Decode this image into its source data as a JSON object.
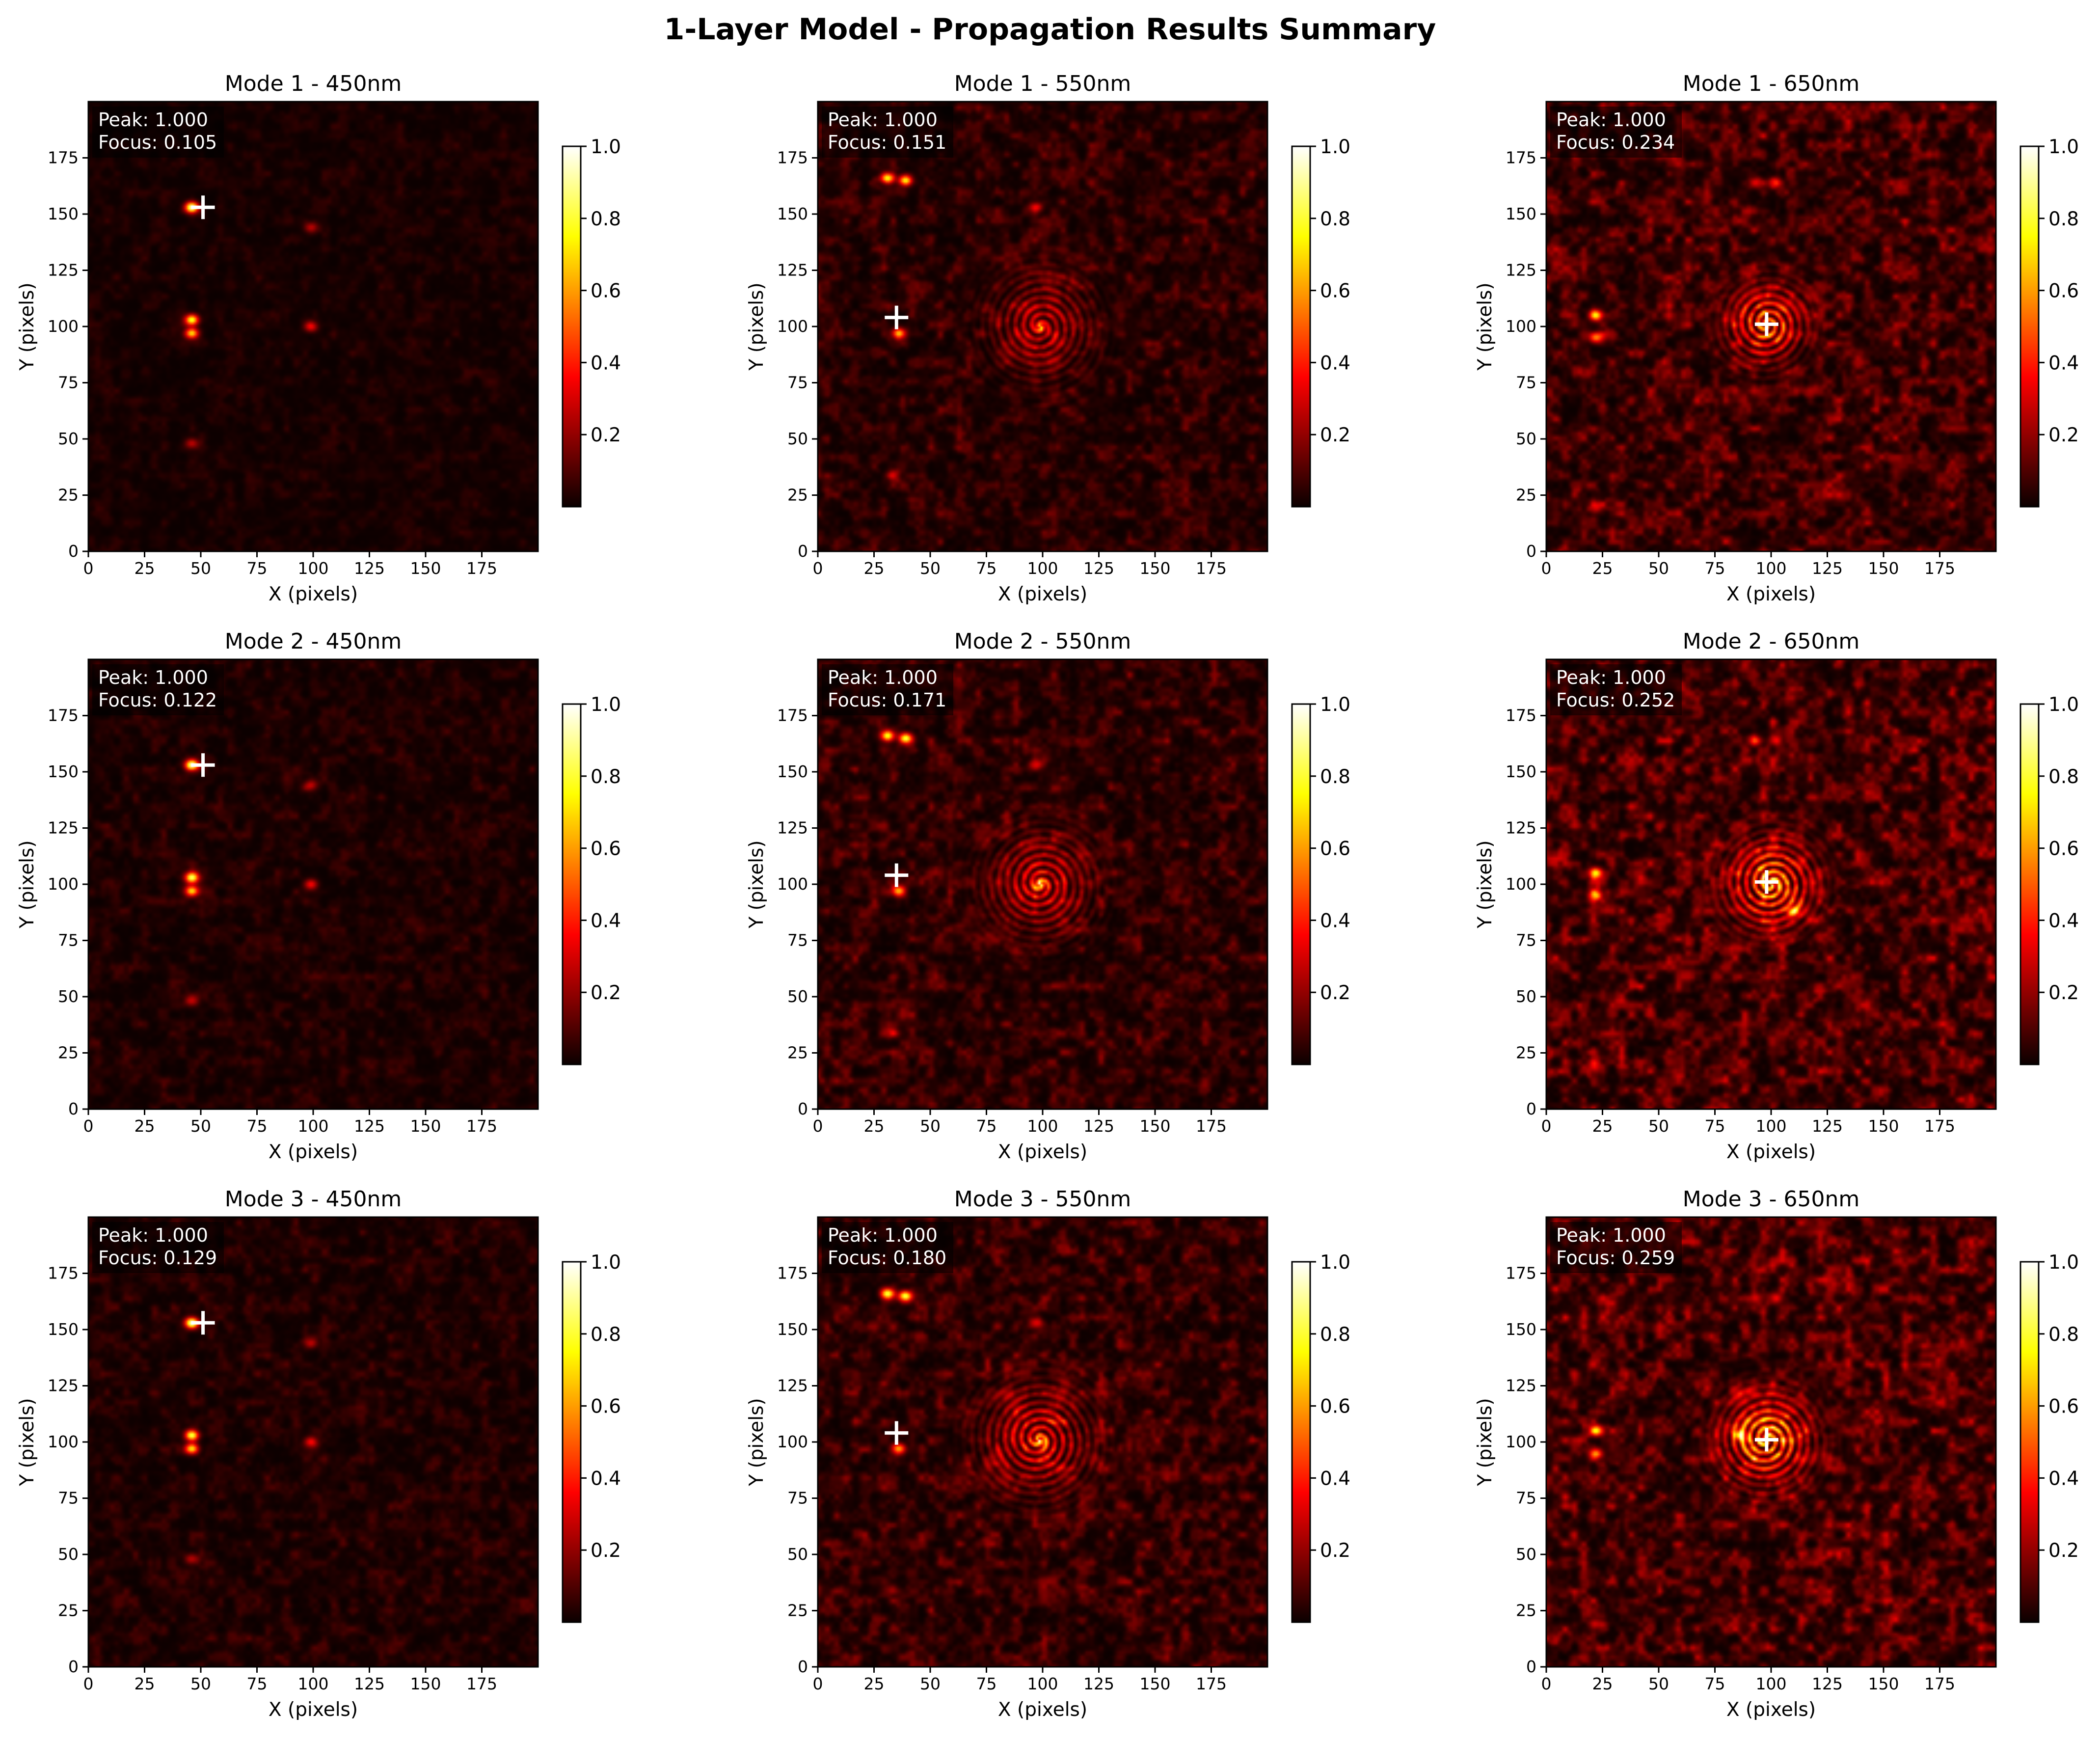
{
  "figure": {
    "title": "1-Layer Model - Propagation Results Summary"
  },
  "colormap": "hot",
  "chart_data": [
    {
      "type": "heatmap",
      "title": "Mode 1 - 450nm",
      "xlabel": "X (pixels)",
      "ylabel": "Y (pixels)",
      "xlim": [
        0,
        200
      ],
      "ylim": [
        0,
        200
      ],
      "xticks": [
        0,
        25,
        50,
        75,
        100,
        125,
        150,
        175
      ],
      "yticks": [
        0,
        25,
        50,
        75,
        100,
        125,
        150,
        175
      ],
      "colorbar": {
        "ticks": [
          0.2,
          0.4,
          0.6,
          0.8,
          1.0
        ],
        "tick_labels": [
          "0.2",
          "0.4",
          "0.6",
          "0.8",
          "1.0"
        ]
      },
      "annotation": {
        "peak_label": "Peak: 1.000",
        "focus_label": "Focus: 0.105"
      },
      "marker": {
        "x": 51,
        "y": 153
      },
      "spots": [
        {
          "x": 46,
          "y": 153,
          "i": 0.95
        },
        {
          "x": 46,
          "y": 103,
          "i": 0.8
        },
        {
          "x": 46,
          "y": 97,
          "i": 0.7
        },
        {
          "x": 99,
          "y": 144,
          "i": 0.25
        },
        {
          "x": 99,
          "y": 100,
          "i": 0.35
        },
        {
          "x": 46,
          "y": 48,
          "i": 0.25
        }
      ],
      "ring": null,
      "noise": 0.05
    },
    {
      "type": "heatmap",
      "title": "Mode 1 - 550nm",
      "xlabel": "X (pixels)",
      "ylabel": "Y (pixels)",
      "xlim": [
        0,
        200
      ],
      "ylim": [
        0,
        200
      ],
      "xticks": [
        0,
        25,
        50,
        75,
        100,
        125,
        150,
        175
      ],
      "yticks": [
        0,
        25,
        50,
        75,
        100,
        125,
        150,
        175
      ],
      "colorbar": {
        "ticks": [
          0.2,
          0.4,
          0.6,
          0.8,
          1.0
        ],
        "tick_labels": [
          "0.2",
          "0.4",
          "0.6",
          "0.8",
          "1.0"
        ]
      },
      "annotation": {
        "peak_label": "Peak: 1.000",
        "focus_label": "Focus: 0.151"
      },
      "marker": {
        "x": 35,
        "y": 104
      },
      "spots": [
        {
          "x": 31,
          "y": 166,
          "i": 0.75
        },
        {
          "x": 39,
          "y": 165,
          "i": 0.75
        },
        {
          "x": 36,
          "y": 97,
          "i": 0.6
        },
        {
          "x": 97,
          "y": 153,
          "i": 0.3
        },
        {
          "x": 99,
          "y": 100,
          "i": 0.45
        },
        {
          "x": 33,
          "y": 34,
          "i": 0.2
        }
      ],
      "ring": {
        "x": 99,
        "y": 100,
        "r": 20,
        "i": 0.3
      },
      "noise": 0.12
    },
    {
      "type": "heatmap",
      "title": "Mode 1 - 650nm",
      "xlabel": "X (pixels)",
      "ylabel": "Y (pixels)",
      "xlim": [
        0,
        200
      ],
      "ylim": [
        0,
        200
      ],
      "xticks": [
        0,
        25,
        50,
        75,
        100,
        125,
        150,
        175
      ],
      "yticks": [
        0,
        25,
        50,
        75,
        100,
        125,
        150,
        175
      ],
      "colorbar": {
        "ticks": [
          0.2,
          0.4,
          0.6,
          0.8,
          1.0
        ],
        "tick_labels": [
          "0.2",
          "0.4",
          "0.6",
          "0.8",
          "1.0"
        ]
      },
      "annotation": {
        "peak_label": "Peak: 1.000",
        "focus_label": "Focus: 0.234"
      },
      "marker": {
        "x": 98,
        "y": 101
      },
      "spots": [
        {
          "x": 22,
          "y": 105,
          "i": 0.7
        },
        {
          "x": 22,
          "y": 95,
          "i": 0.5
        },
        {
          "x": 93,
          "y": 164,
          "i": 0.3
        },
        {
          "x": 102,
          "y": 164,
          "i": 0.3
        },
        {
          "x": 22,
          "y": 19,
          "i": 0.2
        }
      ],
      "ring": {
        "x": 98,
        "y": 101,
        "r": 15,
        "i": 0.6
      },
      "noise": 0.2
    },
    {
      "type": "heatmap",
      "title": "Mode 2 - 450nm",
      "xlabel": "X (pixels)",
      "ylabel": "Y (pixels)",
      "xlim": [
        0,
        200
      ],
      "ylim": [
        0,
        200
      ],
      "xticks": [
        0,
        25,
        50,
        75,
        100,
        125,
        150,
        175
      ],
      "yticks": [
        0,
        25,
        50,
        75,
        100,
        125,
        150,
        175
      ],
      "colorbar": {
        "ticks": [
          0.2,
          0.4,
          0.6,
          0.8,
          1.0
        ],
        "tick_labels": [
          "0.2",
          "0.4",
          "0.6",
          "0.8",
          "1.0"
        ]
      },
      "annotation": {
        "peak_label": "Peak: 1.000",
        "focus_label": "Focus: 0.122"
      },
      "marker": {
        "x": 51,
        "y": 153
      },
      "spots": [
        {
          "x": 46,
          "y": 153,
          "i": 0.95
        },
        {
          "x": 46,
          "y": 103,
          "i": 0.8
        },
        {
          "x": 46,
          "y": 97,
          "i": 0.7
        },
        {
          "x": 99,
          "y": 144,
          "i": 0.25
        },
        {
          "x": 99,
          "y": 100,
          "i": 0.35
        },
        {
          "x": 46,
          "y": 48,
          "i": 0.25
        }
      ],
      "ring": null,
      "noise": 0.07
    },
    {
      "type": "heatmap",
      "title": "Mode 2 - 550nm",
      "xlabel": "X (pixels)",
      "ylabel": "Y (pixels)",
      "xlim": [
        0,
        200
      ],
      "ylim": [
        0,
        200
      ],
      "xticks": [
        0,
        25,
        50,
        75,
        100,
        125,
        150,
        175
      ],
      "yticks": [
        0,
        25,
        50,
        75,
        100,
        125,
        150,
        175
      ],
      "colorbar": {
        "ticks": [
          0.2,
          0.4,
          0.6,
          0.8,
          1.0
        ],
        "tick_labels": [
          "0.2",
          "0.4",
          "0.6",
          "0.8",
          "1.0"
        ]
      },
      "annotation": {
        "peak_label": "Peak: 1.000",
        "focus_label": "Focus: 0.171"
      },
      "marker": {
        "x": 35,
        "y": 104
      },
      "spots": [
        {
          "x": 31,
          "y": 166,
          "i": 0.75
        },
        {
          "x": 39,
          "y": 165,
          "i": 0.75
        },
        {
          "x": 36,
          "y": 97,
          "i": 0.6
        },
        {
          "x": 97,
          "y": 153,
          "i": 0.3
        },
        {
          "x": 99,
          "y": 100,
          "i": 0.45
        },
        {
          "x": 33,
          "y": 34,
          "i": 0.2
        }
      ],
      "ring": {
        "x": 99,
        "y": 100,
        "r": 20,
        "i": 0.35
      },
      "noise": 0.14
    },
    {
      "type": "heatmap",
      "title": "Mode 2 - 650nm",
      "xlabel": "X (pixels)",
      "ylabel": "Y (pixels)",
      "xlim": [
        0,
        200
      ],
      "ylim": [
        0,
        200
      ],
      "xticks": [
        0,
        25,
        50,
        75,
        100,
        125,
        150,
        175
      ],
      "yticks": [
        0,
        25,
        50,
        75,
        100,
        125,
        150,
        175
      ],
      "colorbar": {
        "ticks": [
          0.2,
          0.4,
          0.6,
          0.8,
          1.0
        ],
        "tick_labels": [
          "0.2",
          "0.4",
          "0.6",
          "0.8",
          "1.0"
        ]
      },
      "annotation": {
        "peak_label": "Peak: 1.000",
        "focus_label": "Focus: 0.252"
      },
      "marker": {
        "x": 98,
        "y": 101
      },
      "spots": [
        {
          "x": 22,
          "y": 105,
          "i": 0.7
        },
        {
          "x": 22,
          "y": 95,
          "i": 0.5
        },
        {
          "x": 93,
          "y": 164,
          "i": 0.3
        },
        {
          "x": 102,
          "y": 164,
          "i": 0.3
        },
        {
          "x": 110,
          "y": 88,
          "i": 0.6
        },
        {
          "x": 22,
          "y": 19,
          "i": 0.2
        }
      ],
      "ring": {
        "x": 100,
        "y": 100,
        "r": 17,
        "i": 0.65
      },
      "noise": 0.22
    },
    {
      "type": "heatmap",
      "title": "Mode 3 - 450nm",
      "xlabel": "X (pixels)",
      "ylabel": "Y (pixels)",
      "xlim": [
        0,
        200
      ],
      "ylim": [
        0,
        200
      ],
      "xticks": [
        0,
        25,
        50,
        75,
        100,
        125,
        150,
        175
      ],
      "yticks": [
        0,
        25,
        50,
        75,
        100,
        125,
        150,
        175
      ],
      "colorbar": {
        "ticks": [
          0.2,
          0.4,
          0.6,
          0.8,
          1.0
        ],
        "tick_labels": [
          "0.2",
          "0.4",
          "0.6",
          "0.8",
          "1.0"
        ]
      },
      "annotation": {
        "peak_label": "Peak: 1.000",
        "focus_label": "Focus: 0.129"
      },
      "marker": {
        "x": 51,
        "y": 153
      },
      "spots": [
        {
          "x": 46,
          "y": 153,
          "i": 0.95
        },
        {
          "x": 46,
          "y": 103,
          "i": 0.8
        },
        {
          "x": 46,
          "y": 97,
          "i": 0.7
        },
        {
          "x": 99,
          "y": 144,
          "i": 0.25
        },
        {
          "x": 99,
          "y": 100,
          "i": 0.35
        },
        {
          "x": 46,
          "y": 48,
          "i": 0.25
        }
      ],
      "ring": null,
      "noise": 0.08
    },
    {
      "type": "heatmap",
      "title": "Mode 3 - 550nm",
      "xlabel": "X (pixels)",
      "ylabel": "Y (pixels)",
      "xlim": [
        0,
        200
      ],
      "ylim": [
        0,
        200
      ],
      "xticks": [
        0,
        25,
        50,
        75,
        100,
        125,
        150,
        175
      ],
      "yticks": [
        0,
        25,
        50,
        75,
        100,
        125,
        150,
        175
      ],
      "colorbar": {
        "ticks": [
          0.2,
          0.4,
          0.6,
          0.8,
          1.0
        ],
        "tick_labels": [
          "0.2",
          "0.4",
          "0.6",
          "0.8",
          "1.0"
        ]
      },
      "annotation": {
        "peak_label": "Peak: 1.000",
        "focus_label": "Focus: 0.180"
      },
      "marker": {
        "x": 35,
        "y": 104
      },
      "spots": [
        {
          "x": 31,
          "y": 166,
          "i": 0.75
        },
        {
          "x": 39,
          "y": 165,
          "i": 0.75
        },
        {
          "x": 36,
          "y": 97,
          "i": 0.6
        },
        {
          "x": 97,
          "y": 153,
          "i": 0.3
        },
        {
          "x": 99,
          "y": 100,
          "i": 0.45
        },
        {
          "x": 33,
          "y": 34,
          "i": 0.2
        }
      ],
      "ring": {
        "x": 98,
        "y": 101,
        "r": 21,
        "i": 0.4
      },
      "noise": 0.15
    },
    {
      "type": "heatmap",
      "title": "Mode 3 - 650nm",
      "xlabel": "X (pixels)",
      "ylabel": "Y (pixels)",
      "xlim": [
        0,
        200
      ],
      "ylim": [
        0,
        200
      ],
      "xticks": [
        0,
        25,
        50,
        75,
        100,
        125,
        150,
        175
      ],
      "yticks": [
        0,
        25,
        50,
        75,
        100,
        125,
        150,
        175
      ],
      "colorbar": {
        "ticks": [
          0.2,
          0.4,
          0.6,
          0.8,
          1.0
        ],
        "tick_labels": [
          "0.2",
          "0.4",
          "0.6",
          "0.8",
          "1.0"
        ]
      },
      "annotation": {
        "peak_label": "Peak: 1.000",
        "focus_label": "Focus: 0.259"
      },
      "marker": {
        "x": 98,
        "y": 101
      },
      "spots": [
        {
          "x": 22,
          "y": 105,
          "i": 0.7
        },
        {
          "x": 22,
          "y": 95,
          "i": 0.5
        },
        {
          "x": 93,
          "y": 164,
          "i": 0.3
        },
        {
          "x": 102,
          "y": 164,
          "i": 0.3
        },
        {
          "x": 86,
          "y": 103,
          "i": 0.6
        },
        {
          "x": 22,
          "y": 19,
          "i": 0.2
        }
      ],
      "ring": {
        "x": 98,
        "y": 101,
        "r": 17,
        "i": 0.7
      },
      "noise": 0.22
    }
  ]
}
